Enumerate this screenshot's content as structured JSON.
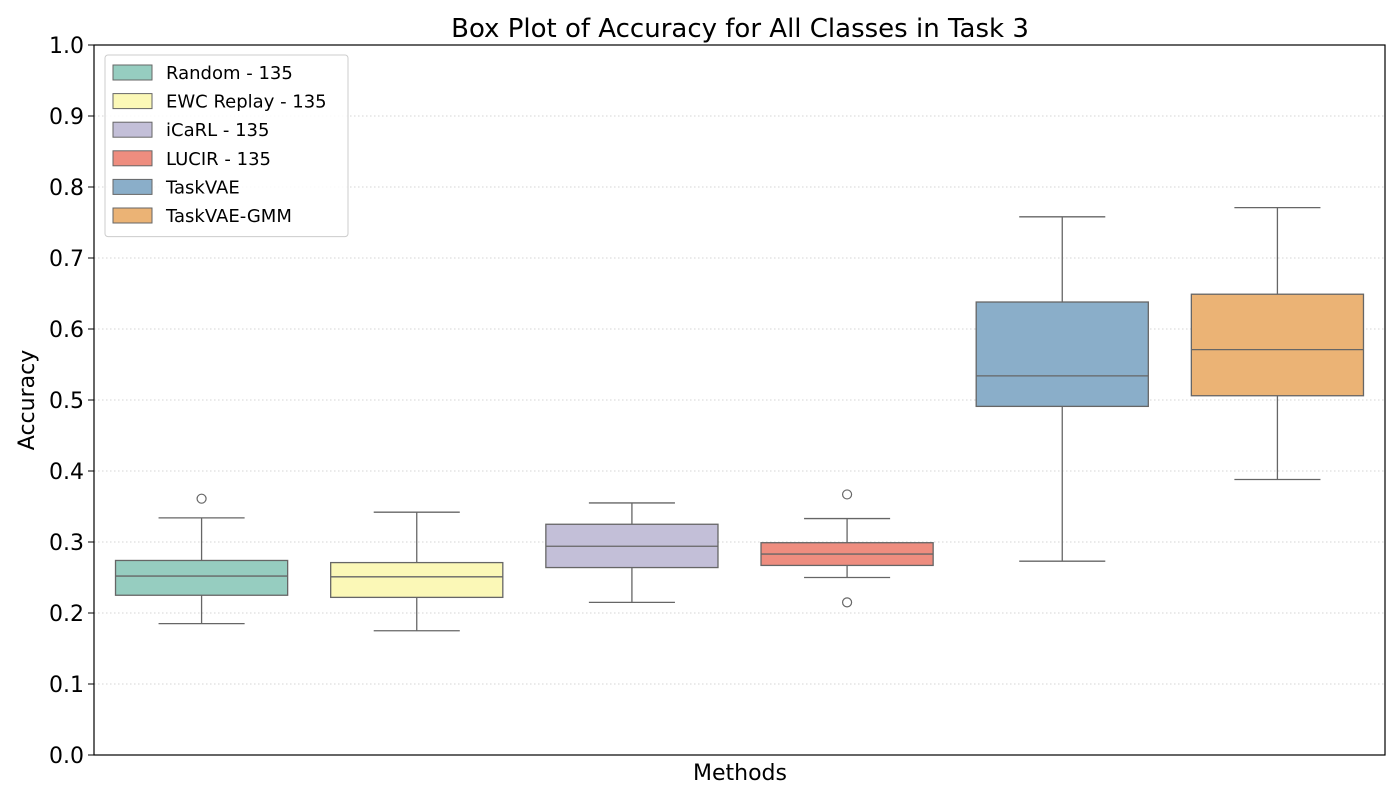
{
  "chart_data": {
    "type": "box",
    "title": "Box Plot of Accuracy for All Classes in Task 3",
    "xlabel": "Methods",
    "ylabel": "Accuracy",
    "ylim": [
      0.0,
      1.0
    ],
    "yticks": [
      "0.0",
      "0.1",
      "0.2",
      "0.3",
      "0.4",
      "0.5",
      "0.6",
      "0.7",
      "0.8",
      "0.9",
      "1.0"
    ],
    "grid": "horizontal dotted",
    "legend_position": "upper-left",
    "series": [
      {
        "name": "Random - 135",
        "color": "#96cdc0",
        "whisker_low": 0.185,
        "q1": 0.225,
        "median": 0.252,
        "q3": 0.274,
        "whisker_high": 0.334,
        "outliers": [
          0.361
        ]
      },
      {
        "name": "EWC Replay - 135",
        "color": "#fbf8b7",
        "whisker_low": 0.175,
        "q1": 0.222,
        "median": 0.251,
        "q3": 0.271,
        "whisker_high": 0.342,
        "outliers": []
      },
      {
        "name": "iCaRL - 135",
        "color": "#c3bfd8",
        "whisker_low": 0.215,
        "q1": 0.264,
        "median": 0.294,
        "q3": 0.325,
        "whisker_high": 0.355,
        "outliers": []
      },
      {
        "name": "LUCIR - 135",
        "color": "#ee8d7f",
        "whisker_low": 0.25,
        "q1": 0.267,
        "median": 0.283,
        "q3": 0.299,
        "whisker_high": 0.333,
        "outliers": [
          0.367,
          0.215
        ]
      },
      {
        "name": "TaskVAE",
        "color": "#8aaec9",
        "whisker_low": 0.273,
        "q1": 0.491,
        "median": 0.534,
        "q3": 0.638,
        "whisker_high": 0.758,
        "outliers": []
      },
      {
        "name": "TaskVAE-GMM",
        "color": "#ebb375",
        "whisker_low": 0.388,
        "q1": 0.506,
        "median": 0.571,
        "q3": 0.649,
        "whisker_high": 0.771,
        "outliers": []
      }
    ]
  }
}
